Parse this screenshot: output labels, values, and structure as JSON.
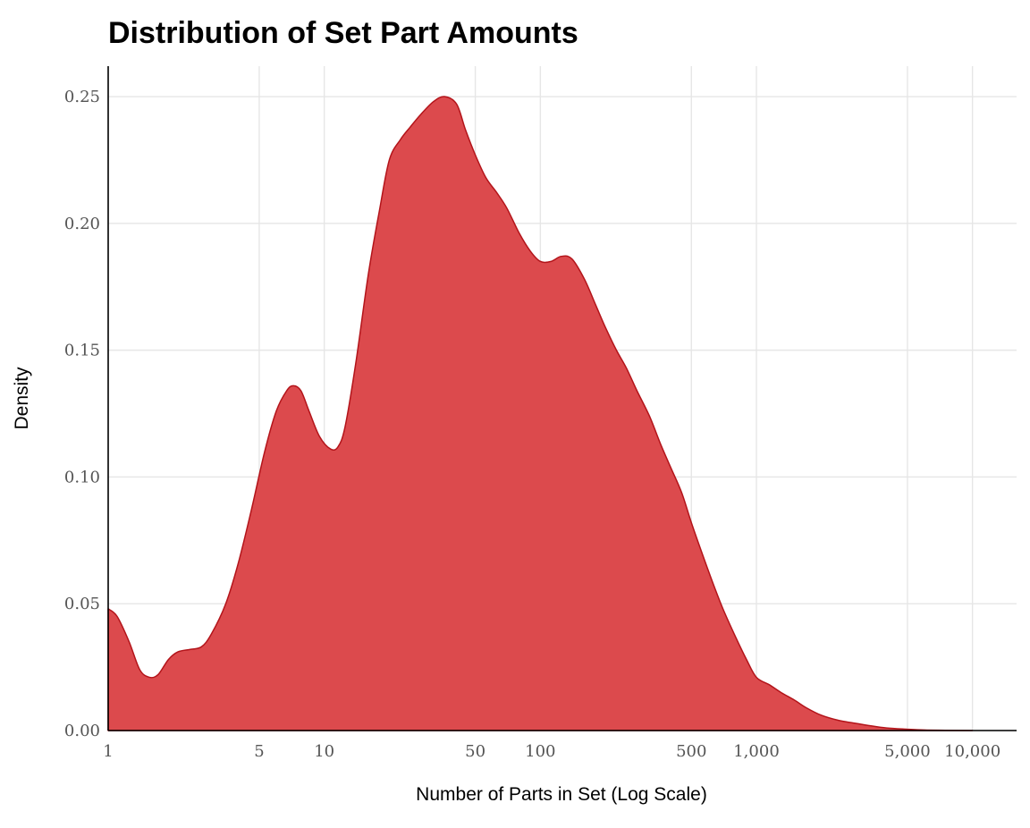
{
  "chart_data": {
    "type": "area",
    "title": "Distribution of Set Part Amounts",
    "xlabel": "Number of Parts in Set (Log Scale)",
    "ylabel": "Density",
    "x_scale": "log10",
    "xlim": [
      1,
      16000
    ],
    "ylim": [
      0,
      0.262
    ],
    "grid": true,
    "legend": "none",
    "x_ticks": [
      {
        "value": 1,
        "label": "1"
      },
      {
        "value": 5,
        "label": "5"
      },
      {
        "value": 10,
        "label": "10"
      },
      {
        "value": 50,
        "label": "50"
      },
      {
        "value": 100,
        "label": "100"
      },
      {
        "value": 500,
        "label": "500"
      },
      {
        "value": 1000,
        "label": "1,000"
      },
      {
        "value": 5000,
        "label": "5,000"
      },
      {
        "value": 10000,
        "label": "10,000"
      }
    ],
    "y_ticks": [
      {
        "value": 0,
        "label": "0.00"
      },
      {
        "value": 0.05,
        "label": "0.05"
      },
      {
        "value": 0.1,
        "label": "0.10"
      },
      {
        "value": 0.15,
        "label": "0.15"
      },
      {
        "value": 0.2,
        "label": "0.20"
      },
      {
        "value": 0.25,
        "label": "0.25"
      }
    ],
    "colors": {
      "fill": "#dc4a4d",
      "stroke": "#b3141a"
    },
    "series": [
      {
        "x": [
          1,
          1.1,
          1.25,
          1.4,
          1.55,
          1.7,
          1.9,
          2.1,
          2.4,
          2.7,
          3,
          3.5,
          4,
          4.6,
          5.3,
          6,
          6.7,
          7.2,
          7.8,
          8.5,
          9.5,
          10.7,
          11.6,
          12.5,
          14,
          16,
          18,
          20,
          22.5,
          25,
          28,
          32,
          36,
          41,
          45,
          50,
          56,
          63,
          70,
          80,
          90,
          100,
          112,
          125,
          140,
          160,
          180,
          200,
          225,
          250,
          280,
          320,
          360,
          400,
          450,
          500,
          560,
          630,
          700,
          800,
          900,
          1000,
          1150,
          1300,
          1500,
          1700,
          2000,
          2400,
          2800,
          3300,
          4000,
          5000,
          6000,
          7500,
          10000
        ],
        "y": [
          0.048,
          0.045,
          0.035,
          0.024,
          0.021,
          0.022,
          0.028,
          0.031,
          0.032,
          0.033,
          0.038,
          0.05,
          0.066,
          0.087,
          0.11,
          0.126,
          0.134,
          0.136,
          0.134,
          0.126,
          0.116,
          0.111,
          0.112,
          0.12,
          0.145,
          0.18,
          0.205,
          0.225,
          0.233,
          0.238,
          0.243,
          0.248,
          0.25,
          0.247,
          0.237,
          0.227,
          0.218,
          0.212,
          0.206,
          0.196,
          0.189,
          0.185,
          0.185,
          0.187,
          0.186,
          0.178,
          0.168,
          0.159,
          0.15,
          0.143,
          0.134,
          0.124,
          0.113,
          0.104,
          0.094,
          0.082,
          0.07,
          0.058,
          0.048,
          0.037,
          0.028,
          0.021,
          0.018,
          0.015,
          0.012,
          0.009,
          0.006,
          0.004,
          0.003,
          0.002,
          0.001,
          0.0005,
          0.0002,
          0.0001,
          0
        ]
      }
    ]
  }
}
